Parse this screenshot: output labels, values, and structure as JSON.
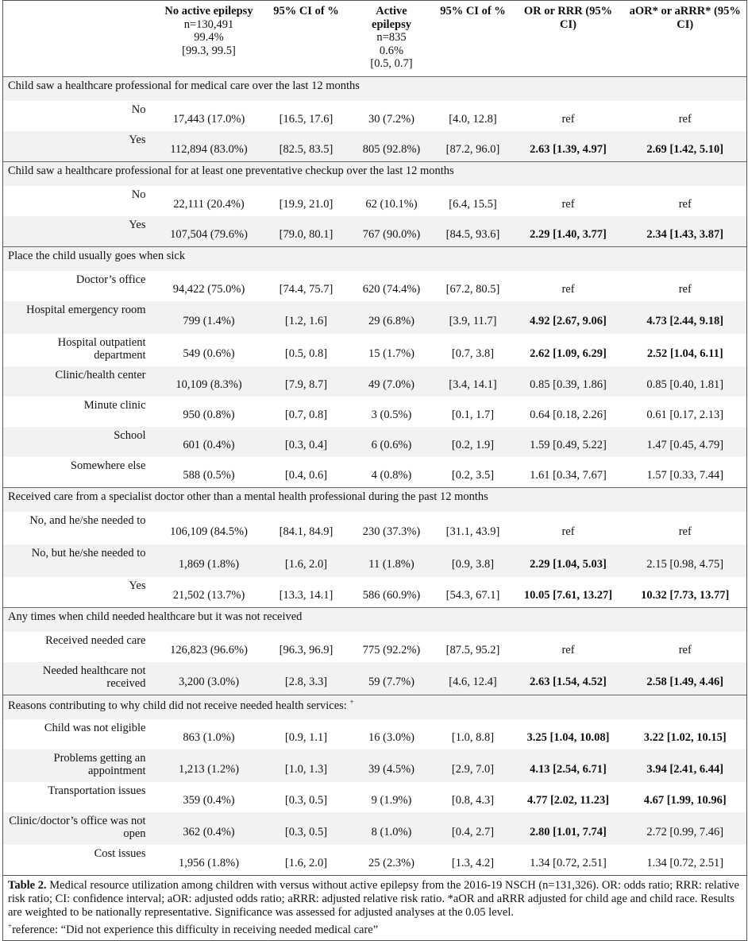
{
  "header": {
    "columns": [
      {
        "title": "",
        "sub": []
      },
      {
        "title": "No active epilepsy",
        "sub": [
          "n=130,491",
          "99.4%",
          "[99.3, 99.5]"
        ]
      },
      {
        "title": "95% CI of %",
        "sub": []
      },
      {
        "title": "Active epilepsy",
        "sub": [
          "n=835",
          "0.6%",
          "[0.5, 0.7]"
        ]
      },
      {
        "title": "95% CI of %",
        "sub": []
      },
      {
        "title": "OR or RRR (95% CI)",
        "sub": []
      },
      {
        "title": "aOR* or aRRR* (95% CI)",
        "sub": []
      }
    ]
  },
  "sections": [
    {
      "title": "Child saw a healthcare professional for medical care over the last 12 months",
      "rows": [
        {
          "label": "No",
          "no_epi": "17,443 (17.0%)",
          "no_ci": "[16.5, 17.6]",
          "epi": "30 (7.2%)",
          "epi_ci": "[4.0, 12.8]",
          "or": "ref",
          "or_sig": false,
          "aor": "ref",
          "aor_sig": false
        },
        {
          "label": "Yes",
          "no_epi": "112,894 (83.0%)",
          "no_ci": "[82.5, 83.5]",
          "epi": "805 (92.8%)",
          "epi_ci": "[87.2, 96.0]",
          "or": "2.63 [1.39, 4.97]",
          "or_sig": true,
          "aor": "2.69 [1.42, 5.10]",
          "aor_sig": true
        }
      ]
    },
    {
      "title": "Child saw a healthcare professional for at least one preventative checkup over the last 12 months",
      "rows": [
        {
          "label": "No",
          "no_epi": "22,111 (20.4%)",
          "no_ci": "[19.9, 21.0]",
          "epi": "62 (10.1%)",
          "epi_ci": "[6.4, 15.5]",
          "or": "ref",
          "or_sig": false,
          "aor": "ref",
          "aor_sig": false
        },
        {
          "label": "Yes",
          "no_epi": "107,504 (79.6%)",
          "no_ci": "[79.0, 80.1]",
          "epi": "767 (90.0%)",
          "epi_ci": "[84.5, 93.6]",
          "or": "2.29 [1.40, 3.77]",
          "or_sig": true,
          "aor": "2.34 [1.43, 3.87]",
          "aor_sig": true
        }
      ]
    },
    {
      "title": "Place the child usually goes when sick",
      "rows": [
        {
          "label": "Doctor’s office",
          "no_epi": "94,422 (75.0%)",
          "no_ci": "[74.4, 75.7]",
          "epi": "620 (74.4%)",
          "epi_ci": "[67.2, 80.5]",
          "or": "ref",
          "or_sig": false,
          "aor": "ref",
          "aor_sig": false
        },
        {
          "label": "Hospital emergency room",
          "no_epi": "799 (1.4%)",
          "no_ci": "[1.2, 1.6]",
          "epi": "29 (6.8%)",
          "epi_ci": "[3.9, 11.7]",
          "or": "4.92 [2.67, 9.06]",
          "or_sig": true,
          "aor": "4.73 [2.44, 9.18]",
          "aor_sig": true
        },
        {
          "label": "Hospital outpatient department",
          "no_epi": "549 (0.6%)",
          "no_ci": "[0.5, 0.8]",
          "epi": "15 (1.7%)",
          "epi_ci": "[0.7, 3.8]",
          "or": "2.62 [1.09, 6.29]",
          "or_sig": true,
          "aor": "2.52 [1.04, 6.11]",
          "aor_sig": true
        },
        {
          "label": "Clinic/health center",
          "no_epi": "10,109 (8.3%)",
          "no_ci": "[7.9, 8.7]",
          "epi": "49 (7.0%)",
          "epi_ci": "[3.4, 14.1]",
          "or": "0.85 [0.39, 1.86]",
          "or_sig": false,
          "aor": "0.85 [0.40, 1.81]",
          "aor_sig": false
        },
        {
          "label": "Minute clinic",
          "no_epi": "950 (0.8%)",
          "no_ci": "[0.7, 0.8]",
          "epi": "3 (0.5%)",
          "epi_ci": "[0.1, 1.7]",
          "or": "0.64 [0.18, 2.26]",
          "or_sig": false,
          "aor": "0.61 [0.17, 2.13]",
          "aor_sig": false
        },
        {
          "label": "School",
          "no_epi": "601 (0.4%)",
          "no_ci": "[0.3, 0.4]",
          "epi": "6 (0.6%)",
          "epi_ci": "[0.2, 1.9]",
          "or": "1.59 [0.49, 5.22]",
          "or_sig": false,
          "aor": "1.47 [0.45, 4.79]",
          "aor_sig": false
        },
        {
          "label": "Somewhere else",
          "no_epi": "588 (0.5%)",
          "no_ci": "[0.4, 0.6]",
          "epi": "4 (0.8%)",
          "epi_ci": "[0.2, 3.5]",
          "or": "1.61 [0.34, 7.67]",
          "or_sig": false,
          "aor": "1.57 [0.33, 7.44]",
          "aor_sig": false
        }
      ]
    },
    {
      "title": "Received care from a specialist doctor other than a mental health professional during the past 12 months",
      "rows": [
        {
          "label": "No, and he/she needed to",
          "no_epi": "106,109 (84.5%)",
          "no_ci": "[84.1, 84.9]",
          "epi": "230 (37.3%)",
          "epi_ci": "[31.1, 43.9]",
          "or": "ref",
          "or_sig": false,
          "aor": "ref",
          "aor_sig": false
        },
        {
          "label": "No, but he/she needed to",
          "no_epi": "1,869 (1.8%)",
          "no_ci": "[1.6, 2.0]",
          "epi": "11 (1.8%)",
          "epi_ci": "[0.9, 3.8]",
          "or": "2.29 [1.04, 5.03]",
          "or_sig": true,
          "aor": "2.15 [0.98, 4.75]",
          "aor_sig": false
        },
        {
          "label": "Yes",
          "no_epi": "21,502 (13.7%)",
          "no_ci": "[13.3, 14.1]",
          "epi": "586 (60.9%)",
          "epi_ci": "[54.3, 67.1]",
          "or": "10.05 [7.61, 13.27]",
          "or_sig": true,
          "aor": "10.32 [7.73, 13.77]",
          "aor_sig": true
        }
      ]
    },
    {
      "title": "Any times when child needed healthcare but it was not received",
      "rows": [
        {
          "label": "Received needed care",
          "no_epi": "126,823 (96.6%)",
          "no_ci": "[96.3, 96.9]",
          "epi": "775 (92.2%)",
          "epi_ci": "[87.5, 95.2]",
          "or": "ref",
          "or_sig": false,
          "aor": "ref",
          "aor_sig": false
        },
        {
          "label": "Needed healthcare not received",
          "no_epi": "3,200 (3.0%)",
          "no_ci": "[2.8, 3.3]",
          "epi": "59 (7.7%)",
          "epi_ci": "[4.6, 12.4]",
          "or": "2.63 [1.54, 4.52]",
          "or_sig": true,
          "aor": "2.58 [1.49, 4.46]",
          "aor_sig": true
        }
      ]
    },
    {
      "title": "Reasons contributing to why child did not receive needed health services:",
      "title_mark": "+",
      "rows": [
        {
          "label": "Child was not eligible",
          "no_epi": "863 (1.0%)",
          "no_ci": "[0.9, 1.1]",
          "epi": "16 (3.0%)",
          "epi_ci": "[1.0, 8.8]",
          "or": "3.25 [1.04, 10.08]",
          "or_sig": true,
          "aor": "3.22 [1.02, 10.15]",
          "aor_sig": true
        },
        {
          "label": "Problems getting an appointment",
          "no_epi": "1,213 (1.2%)",
          "no_ci": "[1.0, 1.3]",
          "epi": "39 (4.5%)",
          "epi_ci": "[2.9, 7.0]",
          "or": "4.13 [2.54, 6.71]",
          "or_sig": true,
          "aor": "3.94 [2.41, 6.44]",
          "aor_sig": true
        },
        {
          "label": "Transportation issues",
          "no_epi": "359 (0.4%)",
          "no_ci": "[0.3, 0.5]",
          "epi": "9 (1.9%)",
          "epi_ci": "[0.8, 4.3]",
          "or": "4.77 [2.02, 11.23]",
          "or_sig": true,
          "aor": "4.67 [1.99, 10.96]",
          "aor_sig": true
        },
        {
          "label": "Clinic/doctor’s office was not open",
          "no_epi": "362 (0.4%)",
          "no_ci": "[0.3, 0.5]",
          "epi": "8 (1.0%)",
          "epi_ci": "[0.4, 2.7]",
          "or": "2.80 [1.01, 7.74]",
          "or_sig": true,
          "aor": "2.72 [0.99, 7.46]",
          "aor_sig": false
        },
        {
          "label": "Cost issues",
          "no_epi": "1,956 (1.8%)",
          "no_ci": "[1.6, 2.0]",
          "epi": "25 (2.3%)",
          "epi_ci": "[1.3, 4.2]",
          "or": "1.34 [0.72, 2.51]",
          "or_sig": false,
          "aor": "1.34 [0.72, 2.51]",
          "aor_sig": false
        }
      ]
    }
  ],
  "caption": {
    "label": "Table 2.",
    "text": " Medical resource utilization among children with versus without active epilepsy from the 2016-19 NSCH (n=131,326). OR: odds ratio; RRR: relative risk ratio; CI: confidence interval; aOR: adjusted odds ratio; aRRR: adjusted relative risk ratio. *aOR and aRRR adjusted for child age and child race. Results are weighted to be nationally representative. Significance was assessed for adjusted analyses at the 0.05 level.",
    "footnote_mark": "+",
    "footnote": "reference: “Did not experience this difficulty in receiving needed medical care”"
  }
}
